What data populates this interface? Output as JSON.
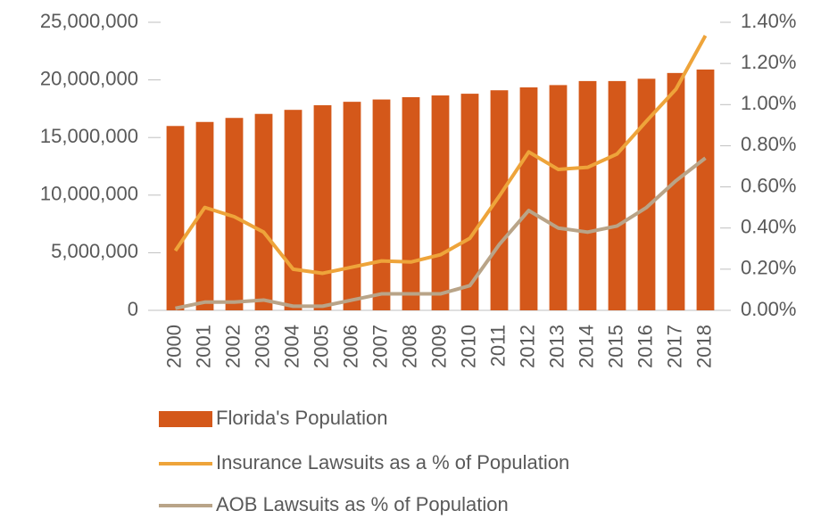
{
  "chart_data": {
    "type": "bar_line",
    "categories": [
      "2000",
      "2001",
      "2002",
      "2003",
      "2004",
      "2005",
      "2006",
      "2007",
      "2008",
      "2009",
      "2010",
      "2011",
      "2012",
      "2013",
      "2014",
      "2015",
      "2016",
      "2017",
      "2018"
    ],
    "series": [
      {
        "name": "Florida's Population",
        "type": "bar",
        "color": "#d4581a",
        "values": [
          16000000,
          16350000,
          16700000,
          17050000,
          17400000,
          17800000,
          18100000,
          18300000,
          18500000,
          18650000,
          18800000,
          19100000,
          19350000,
          19550000,
          19900000,
          19900000,
          20100000,
          20600000,
          20900000
        ]
      },
      {
        "name": "Insurance Lawsuits as a % of Population",
        "type": "line",
        "axis": "y2",
        "color": "#eea43a",
        "values": [
          0.29,
          0.5,
          0.455,
          0.38,
          0.2,
          0.18,
          0.21,
          0.24,
          0.235,
          0.27,
          0.35,
          0.555,
          0.77,
          0.685,
          0.695,
          0.76,
          0.92,
          1.075,
          1.335
        ]
      },
      {
        "name": "AOB Lawsuits as % of Population",
        "type": "line",
        "axis": "y2",
        "color": "#b9a488",
        "values": [
          0.01,
          0.04,
          0.04,
          0.05,
          0.02,
          0.02,
          0.05,
          0.08,
          0.08,
          0.08,
          0.12,
          0.32,
          0.485,
          0.4,
          0.38,
          0.41,
          0.5,
          0.63,
          0.74
        ]
      }
    ],
    "ylim": [
      0,
      25000000
    ],
    "yticks": [
      0,
      {
        "value": 5000000,
        "label": "5,000,000"
      },
      {
        "value": 10000000,
        "label": "10,000,000"
      },
      {
        "value": 15000000,
        "label": "15,000,000"
      },
      {
        "value": 20000000,
        "label": "20,000,000"
      },
      {
        "value": 25000000,
        "label": "25,000,000"
      }
    ],
    "y2lim": [
      0,
      1.4
    ],
    "y2ticks": [
      {
        "value": 0,
        "label": "0.00%"
      },
      {
        "value": 0.2,
        "label": "0.20%"
      },
      {
        "value": 0.4,
        "label": "0.40%"
      },
      {
        "value": 0.6,
        "label": "0.60%"
      },
      {
        "value": 0.8,
        "label": "0.80%"
      },
      {
        "value": 1.0,
        "label": "1.00%"
      },
      {
        "value": 1.2,
        "label": "1.20%"
      },
      {
        "value": 1.4,
        "label": "1.40%"
      }
    ],
    "legend": "bottom"
  }
}
